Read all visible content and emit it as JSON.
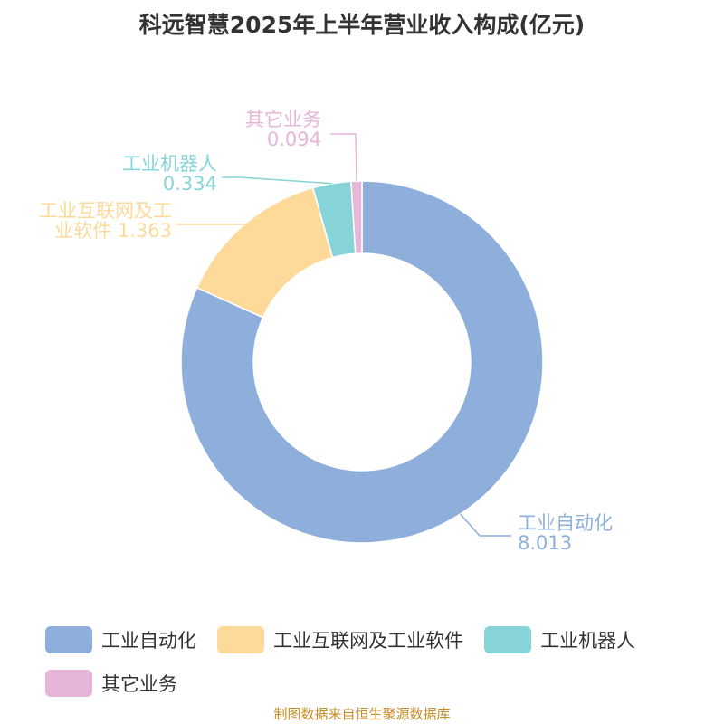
{
  "chart_data": {
    "type": "pie",
    "title": "科远智慧2025年上半年营业收入构成(亿元)",
    "slices": [
      {
        "name": "工业自动化",
        "value": 8.013,
        "color": "#8eaedb",
        "label_lines": [
          "工业自动化",
          "8.013"
        ],
        "label_side": "right"
      },
      {
        "name": "工业互联网及工业软件",
        "value": 1.363,
        "color": "#fdd99a",
        "label_lines": [
          "工业互联网及工",
          "业软件 1.363"
        ],
        "label_side": "left"
      },
      {
        "name": "工业机器人",
        "value": 0.334,
        "color": "#87d4d8",
        "label_lines": [
          "工业机器人",
          "0.334"
        ],
        "label_side": "left"
      },
      {
        "name": "其它业务",
        "value": 0.094,
        "color": "#e6b5d8",
        "label_lines": [
          "其它业务",
          "0.094"
        ],
        "label_side": "left"
      }
    ]
  },
  "legend": [
    {
      "label": "工业自动化",
      "color": "#8eaedb"
    },
    {
      "label": "工业互联网及工业软件",
      "color": "#fdd99a"
    },
    {
      "label": "工业机器人",
      "color": "#87d4d8"
    },
    {
      "label": "其它业务",
      "color": "#e6b5d8"
    }
  ],
  "source": "制图数据来自恒生聚源数据库"
}
